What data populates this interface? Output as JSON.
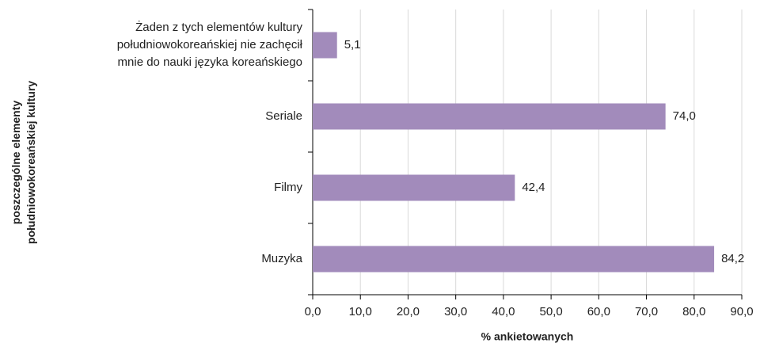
{
  "chart_data": {
    "type": "bar",
    "orientation": "horizontal",
    "categories": [
      "Żaden z tych elementów kultury\npołudniowokoreańskiej nie zachęcił\nmnie do nauki języka koreańskiego",
      "Seriale",
      "Filmy",
      "Muzyka"
    ],
    "values": [
      5.1,
      74.0,
      42.4,
      84.2
    ],
    "value_labels": [
      "5,1",
      "74,0",
      "42,4",
      "84,2"
    ],
    "color": "#a28bbb",
    "xlim": [
      0,
      90
    ],
    "xticks": [
      {
        "value": 0,
        "label": "0,0"
      },
      {
        "value": 10,
        "label": "10,0"
      },
      {
        "value": 20,
        "label": "20,0"
      },
      {
        "value": 30,
        "label": "30,0"
      },
      {
        "value": 40,
        "label": "40,0"
      },
      {
        "value": 50,
        "label": "50,0"
      },
      {
        "value": 60,
        "label": "60,0"
      },
      {
        "value": 70,
        "label": "70,0"
      },
      {
        "value": 80,
        "label": "80,0"
      },
      {
        "value": 90,
        "label": "90,0"
      }
    ],
    "xlabel": "% ankietowanych",
    "ylabel": "poszczególne  elementy\npołudniowokoreańskiej kultury",
    "grid": true
  }
}
